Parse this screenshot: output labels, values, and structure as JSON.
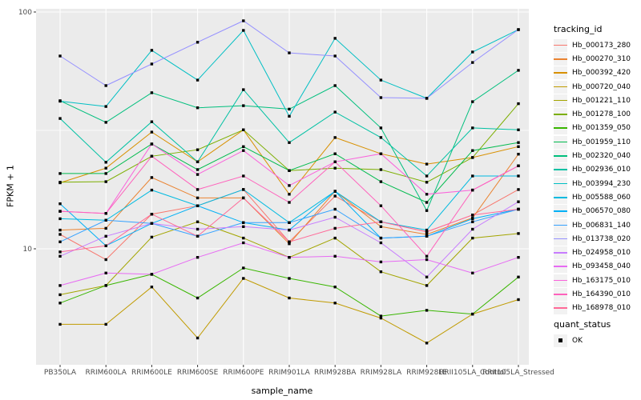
{
  "chart_data": {
    "type": "line",
    "title": "",
    "xlabel": "sample_name",
    "ylabel": "FPKM + 1",
    "y_scale": "log10",
    "ylim": [
      3.2,
      103
    ],
    "yticks": [
      {
        "label": "100",
        "value": 100
      },
      {
        "label": "10",
        "value": 10
      }
    ],
    "minor_gridline_values": [
      31.62
    ],
    "grid": true,
    "legend_position": "right",
    "panel_bg": "#EBEBEB",
    "grid_color": "#FFFFFF",
    "tick_label_color": "#4D4D4D",
    "point_color": "#000000",
    "point_shape": "filled-square",
    "categories": [
      "PB350LA",
      "RRIM600LA",
      "RRIM600LE",
      "RRIM600SE",
      "RRIM600PE",
      "RRIM901LA",
      "RRIM928BA",
      "RRIM928LA",
      "RRIM928LE",
      "RRII105LA_Control",
      "RRII105LA_Stressed"
    ],
    "legend_title": "tracking_id",
    "series": [
      {
        "name": "Hb_000173_280",
        "color": "#F8766D",
        "values": [
          11.5,
          9.0,
          14.0,
          15.2,
          17.8,
          10.7,
          16.7,
          13.0,
          11.8,
          13.9,
          17.8
        ]
      },
      {
        "name": "Hb_000270_310",
        "color": "#EA8331",
        "values": [
          12.0,
          12.2,
          20.0,
          16.4,
          16.4,
          10.5,
          17.5,
          12.4,
          11.5,
          13.5,
          25.1
        ]
      },
      {
        "name": "Hb_000392_420",
        "color": "#D89000",
        "values": [
          19.0,
          21.9,
          31.1,
          23.3,
          31.8,
          17.0,
          29.5,
          25.2,
          22.8,
          24.3,
          27.0
        ]
      },
      {
        "name": "Hb_000720_040",
        "color": "#C09B00",
        "values": [
          4.8,
          4.8,
          6.9,
          4.2,
          7.5,
          6.2,
          5.9,
          5.1,
          4.0,
          5.3,
          6.1
        ]
      },
      {
        "name": "Hb_001221_110",
        "color": "#A3A500",
        "values": [
          6.4,
          7.0,
          11.2,
          13.0,
          11.1,
          9.2,
          11.1,
          8.0,
          7.0,
          11.1,
          11.6
        ]
      },
      {
        "name": "Hb_001278_100",
        "color": "#7CAE00",
        "values": [
          19.1,
          19.2,
          24.6,
          26.2,
          31.8,
          21.4,
          21.9,
          21.6,
          19.1,
          24.3,
          41.0
        ]
      },
      {
        "name": "Hb_001359_050",
        "color": "#39B600",
        "values": [
          5.9,
          7.0,
          7.8,
          6.2,
          8.3,
          7.5,
          6.9,
          5.2,
          5.5,
          5.3,
          7.6
        ]
      },
      {
        "name": "Hb_001959_110",
        "color": "#00BB4E",
        "values": [
          20.8,
          20.8,
          27.7,
          21.6,
          27.0,
          21.4,
          25.2,
          19.2,
          15.7,
          26.0,
          28.1
        ]
      },
      {
        "name": "Hb_002320_040",
        "color": "#00BF7D",
        "values": [
          42.2,
          34.2,
          45.6,
          39.4,
          40.2,
          38.9,
          48.9,
          32.4,
          14.5,
          41.8,
          56.7
        ]
      },
      {
        "name": "Hb_002936_010",
        "color": "#00C1A3",
        "values": [
          35.5,
          23.2,
          34.4,
          23.3,
          47.0,
          28.1,
          37.8,
          29.5,
          20.3,
          32.4,
          31.8
        ]
      },
      {
        "name": "Hb_003994_230",
        "color": "#00BFC4",
        "values": [
          42.0,
          39.9,
          68.9,
          51.6,
          83.6,
          36.3,
          77.4,
          51.6,
          43.2,
          67.8,
          84.3
        ]
      },
      {
        "name": "Hb_005588_060",
        "color": "#00BAE0",
        "values": [
          13.4,
          13.2,
          17.7,
          15.2,
          17.8,
          12.9,
          17.5,
          13.0,
          12.0,
          20.3,
          20.3
        ]
      },
      {
        "name": "Hb_006570_080",
        "color": "#00B0F6",
        "values": [
          15.5,
          10.3,
          12.8,
          15.2,
          12.9,
          12.0,
          17.5,
          11.1,
          11.3,
          13.4,
          14.7
        ]
      },
      {
        "name": "Hb_006831_140",
        "color": "#35A2FF",
        "values": [
          10.7,
          13.2,
          12.8,
          11.3,
          12.9,
          12.9,
          14.7,
          11.1,
          11.3,
          13.0,
          14.7
        ]
      },
      {
        "name": "Hb_013738_020",
        "color": "#9590FF",
        "values": [
          65.2,
          48.9,
          60.3,
          74.5,
          91.8,
          67.2,
          65.2,
          43.5,
          43.2,
          61.2,
          84.3
        ]
      },
      {
        "name": "Hb_024958_010",
        "color": "#C77CFF",
        "values": [
          9.3,
          11.3,
          12.8,
          12.1,
          12.4,
          12.0,
          13.6,
          10.6,
          7.6,
          12.1,
          15.8
        ]
      },
      {
        "name": "Hb_093458_040",
        "color": "#E76BF3",
        "values": [
          7.0,
          7.9,
          7.8,
          9.2,
          10.6,
          9.2,
          9.3,
          8.8,
          9.0,
          7.9,
          9.2
        ]
      },
      {
        "name": "Hb_163175_010",
        "color": "#FA62DB",
        "values": [
          14.4,
          14.1,
          27.7,
          20.6,
          26.0,
          18.5,
          23.3,
          25.2,
          17.0,
          17.7,
          22.4
        ]
      },
      {
        "name": "Hb_164390_010",
        "color": "#FF62BC",
        "values": [
          14.4,
          14.1,
          24.6,
          17.8,
          20.3,
          15.7,
          23.3,
          15.2,
          9.3,
          17.7,
          22.4
        ]
      },
      {
        "name": "Hb_168978_010",
        "color": "#FF6A98",
        "values": [
          9.7,
          10.3,
          14.0,
          11.3,
          16.4,
          10.7,
          12.2,
          13.0,
          11.8,
          13.9,
          14.7
        ]
      }
    ],
    "quant_legend": {
      "title": "quant_status",
      "items": [
        {
          "label": "OK",
          "marker": "black-square"
        }
      ]
    }
  }
}
